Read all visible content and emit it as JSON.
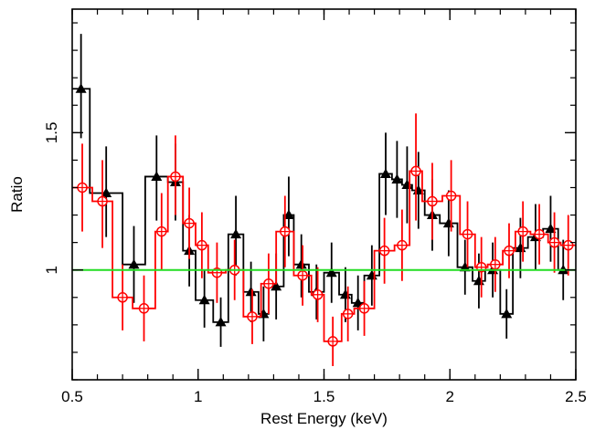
{
  "chart_data": {
    "type": "scatter",
    "xlabel": "Rest Energy (keV)",
    "ylabel": "Ratio",
    "xlim": [
      0.5,
      2.5
    ],
    "ylim": [
      0.6,
      1.95
    ],
    "xticks": [
      {
        "value": 0.5,
        "label": "0.5"
      },
      {
        "value": 1.0,
        "label": "1"
      },
      {
        "value": 1.5,
        "label": "1.5"
      },
      {
        "value": 2.0,
        "label": "2"
      },
      {
        "value": 2.5,
        "label": "2.5"
      }
    ],
    "yticks": [
      {
        "value": 1.0,
        "label": "1"
      },
      {
        "value": 1.5,
        "label": "1.5"
      }
    ],
    "grid": false,
    "reference_line": {
      "y": 1.0,
      "color": "#22dd22"
    },
    "series": [
      {
        "color": "#000000",
        "marker": "filled-triangle",
        "points": [
          {
            "xlo": 0.5,
            "xhi": 0.57,
            "y": 1.66,
            "ylo": 1.48,
            "yhi": 1.86
          },
          {
            "xlo": 0.57,
            "xhi": 0.7,
            "y": 1.28,
            "ylo": 1.12,
            "yhi": 1.45
          },
          {
            "xlo": 0.7,
            "xhi": 0.79,
            "y": 1.02,
            "ylo": 0.88,
            "yhi": 1.16
          },
          {
            "xlo": 0.79,
            "xhi": 0.88,
            "y": 1.34,
            "ylo": 1.18,
            "yhi": 1.49
          },
          {
            "xlo": 0.88,
            "xhi": 0.94,
            "y": 1.32,
            "ylo": 1.18,
            "yhi": 1.46
          },
          {
            "xlo": 0.94,
            "xhi": 0.99,
            "y": 1.07,
            "ylo": 0.94,
            "yhi": 1.2
          },
          {
            "xlo": 0.99,
            "xhi": 1.06,
            "y": 0.89,
            "ylo": 0.79,
            "yhi": 1.0
          },
          {
            "xlo": 1.06,
            "xhi": 1.12,
            "y": 0.81,
            "ylo": 0.72,
            "yhi": 0.9
          },
          {
            "xlo": 1.12,
            "xhi": 1.18,
            "y": 1.13,
            "ylo": 0.98,
            "yhi": 1.27
          },
          {
            "xlo": 1.18,
            "xhi": 1.24,
            "y": 0.92,
            "ylo": 0.81,
            "yhi": 1.03
          },
          {
            "xlo": 1.24,
            "xhi": 1.28,
            "y": 0.84,
            "ylo": 0.74,
            "yhi": 0.94
          },
          {
            "xlo": 1.28,
            "xhi": 1.34,
            "y": 0.94,
            "ylo": 0.82,
            "yhi": 1.06
          },
          {
            "xlo": 1.34,
            "xhi": 1.38,
            "y": 1.2,
            "ylo": 1.05,
            "yhi": 1.34
          },
          {
            "xlo": 1.38,
            "xhi": 1.44,
            "y": 1.02,
            "ylo": 0.9,
            "yhi": 1.13
          },
          {
            "xlo": 1.44,
            "xhi": 1.5,
            "y": 0.92,
            "ylo": 0.82,
            "yhi": 1.02
          },
          {
            "xlo": 1.5,
            "xhi": 1.56,
            "y": 0.99,
            "ylo": 0.88,
            "yhi": 1.1
          },
          {
            "xlo": 1.56,
            "xhi": 1.61,
            "y": 0.91,
            "ylo": 0.81,
            "yhi": 1.01
          },
          {
            "xlo": 1.61,
            "xhi": 1.66,
            "y": 0.88,
            "ylo": 0.78,
            "yhi": 0.98
          },
          {
            "xlo": 1.66,
            "xhi": 1.72,
            "y": 0.98,
            "ylo": 0.87,
            "yhi": 1.09
          },
          {
            "xlo": 1.72,
            "xhi": 1.77,
            "y": 1.35,
            "ylo": 1.2,
            "yhi": 1.5
          },
          {
            "xlo": 1.77,
            "xhi": 1.81,
            "y": 1.33,
            "ylo": 1.19,
            "yhi": 1.47
          },
          {
            "xlo": 1.81,
            "xhi": 1.85,
            "y": 1.31,
            "ylo": 1.17,
            "yhi": 1.45
          },
          {
            "xlo": 1.85,
            "xhi": 1.9,
            "y": 1.29,
            "ylo": 1.15,
            "yhi": 1.43
          },
          {
            "xlo": 1.9,
            "xhi": 1.96,
            "y": 1.2,
            "ylo": 1.07,
            "yhi": 1.33
          },
          {
            "xlo": 1.96,
            "xhi": 2.03,
            "y": 1.17,
            "ylo": 1.05,
            "yhi": 1.29
          },
          {
            "xlo": 2.03,
            "xhi": 2.09,
            "y": 1.01,
            "ylo": 0.91,
            "yhi": 1.11
          },
          {
            "xlo": 2.09,
            "xhi": 2.14,
            "y": 0.96,
            "ylo": 0.86,
            "yhi": 1.06
          },
          {
            "xlo": 2.14,
            "xhi": 2.2,
            "y": 1.0,
            "ylo": 0.9,
            "yhi": 1.1
          },
          {
            "xlo": 2.2,
            "xhi": 2.25,
            "y": 0.84,
            "ylo": 0.75,
            "yhi": 0.93
          },
          {
            "xlo": 2.25,
            "xhi": 2.31,
            "y": 1.08,
            "ylo": 0.97,
            "yhi": 1.19
          },
          {
            "xlo": 2.31,
            "xhi": 2.37,
            "y": 1.12,
            "ylo": 1.0,
            "yhi": 1.24
          },
          {
            "xlo": 2.37,
            "xhi": 2.43,
            "y": 1.15,
            "ylo": 1.03,
            "yhi": 1.27
          },
          {
            "xlo": 2.43,
            "xhi": 2.47,
            "y": 1.0,
            "ylo": 0.89,
            "yhi": 1.11
          }
        ]
      },
      {
        "color": "#ff0000",
        "marker": "open-circle-cross",
        "points": [
          {
            "xlo": 0.5,
            "xhi": 0.58,
            "y": 1.3,
            "ylo": 1.14,
            "yhi": 1.46
          },
          {
            "xlo": 0.58,
            "xhi": 0.66,
            "y": 1.25,
            "ylo": 1.08,
            "yhi": 1.4
          },
          {
            "xlo": 0.66,
            "xhi": 0.74,
            "y": 0.9,
            "ylo": 0.78,
            "yhi": 1.02
          },
          {
            "xlo": 0.74,
            "xhi": 0.83,
            "y": 0.86,
            "ylo": 0.74,
            "yhi": 0.98
          },
          {
            "xlo": 0.83,
            "xhi": 0.88,
            "y": 1.14,
            "ylo": 1.0,
            "yhi": 1.28
          },
          {
            "xlo": 0.88,
            "xhi": 0.94,
            "y": 1.34,
            "ylo": 1.2,
            "yhi": 1.49
          },
          {
            "xlo": 0.94,
            "xhi": 0.99,
            "y": 1.17,
            "ylo": 1.04,
            "yhi": 1.3
          },
          {
            "xlo": 0.99,
            "xhi": 1.04,
            "y": 1.09,
            "ylo": 0.97,
            "yhi": 1.21
          },
          {
            "xlo": 1.04,
            "xhi": 1.11,
            "y": 0.99,
            "ylo": 0.88,
            "yhi": 1.1
          },
          {
            "xlo": 1.11,
            "xhi": 1.18,
            "y": 1.0,
            "ylo": 0.89,
            "yhi": 1.11
          },
          {
            "xlo": 1.18,
            "xhi": 1.25,
            "y": 0.83,
            "ylo": 0.73,
            "yhi": 0.93
          },
          {
            "xlo": 1.25,
            "xhi": 1.31,
            "y": 0.95,
            "ylo": 0.84,
            "yhi": 1.06
          },
          {
            "xlo": 1.31,
            "xhi": 1.38,
            "y": 1.14,
            "ylo": 1.01,
            "yhi": 1.27
          },
          {
            "xlo": 1.38,
            "xhi": 1.45,
            "y": 0.98,
            "ylo": 0.87,
            "yhi": 1.09
          },
          {
            "xlo": 1.45,
            "xhi": 1.5,
            "y": 0.91,
            "ylo": 0.81,
            "yhi": 1.01
          },
          {
            "xlo": 1.5,
            "xhi": 1.57,
            "y": 0.74,
            "ylo": 0.65,
            "yhi": 0.83
          },
          {
            "xlo": 1.57,
            "xhi": 1.62,
            "y": 0.84,
            "ylo": 0.74,
            "yhi": 0.94
          },
          {
            "xlo": 1.62,
            "xhi": 1.7,
            "y": 0.86,
            "ylo": 0.76,
            "yhi": 0.96
          },
          {
            "xlo": 1.7,
            "xhi": 1.78,
            "y": 1.07,
            "ylo": 0.95,
            "yhi": 1.19
          },
          {
            "xlo": 1.78,
            "xhi": 1.84,
            "y": 1.09,
            "ylo": 0.96,
            "yhi": 1.22
          },
          {
            "xlo": 1.84,
            "xhi": 1.89,
            "y": 1.36,
            "ylo": 1.18,
            "yhi": 1.57
          },
          {
            "xlo": 1.89,
            "xhi": 1.97,
            "y": 1.25,
            "ylo": 1.11,
            "yhi": 1.39
          },
          {
            "xlo": 1.97,
            "xhi": 2.04,
            "y": 1.27,
            "ylo": 1.14,
            "yhi": 1.4
          },
          {
            "xlo": 2.04,
            "xhi": 2.1,
            "y": 1.13,
            "ylo": 1.01,
            "yhi": 1.25
          },
          {
            "xlo": 2.1,
            "xhi": 2.15,
            "y": 1.01,
            "ylo": 0.9,
            "yhi": 1.12
          },
          {
            "xlo": 2.15,
            "xhi": 2.21,
            "y": 1.02,
            "ylo": 0.92,
            "yhi": 1.12
          },
          {
            "xlo": 2.21,
            "xhi": 2.26,
            "y": 1.07,
            "ylo": 0.97,
            "yhi": 1.17
          },
          {
            "xlo": 2.26,
            "xhi": 2.32,
            "y": 1.14,
            "ylo": 1.03,
            "yhi": 1.25
          },
          {
            "xlo": 2.32,
            "xhi": 2.39,
            "y": 1.13,
            "ylo": 1.02,
            "yhi": 1.24
          },
          {
            "xlo": 2.39,
            "xhi": 2.44,
            "y": 1.1,
            "ylo": 0.99,
            "yhi": 1.21
          },
          {
            "xlo": 2.44,
            "xhi": 2.5,
            "y": 1.09,
            "ylo": 0.98,
            "yhi": 1.2
          }
        ]
      }
    ]
  }
}
